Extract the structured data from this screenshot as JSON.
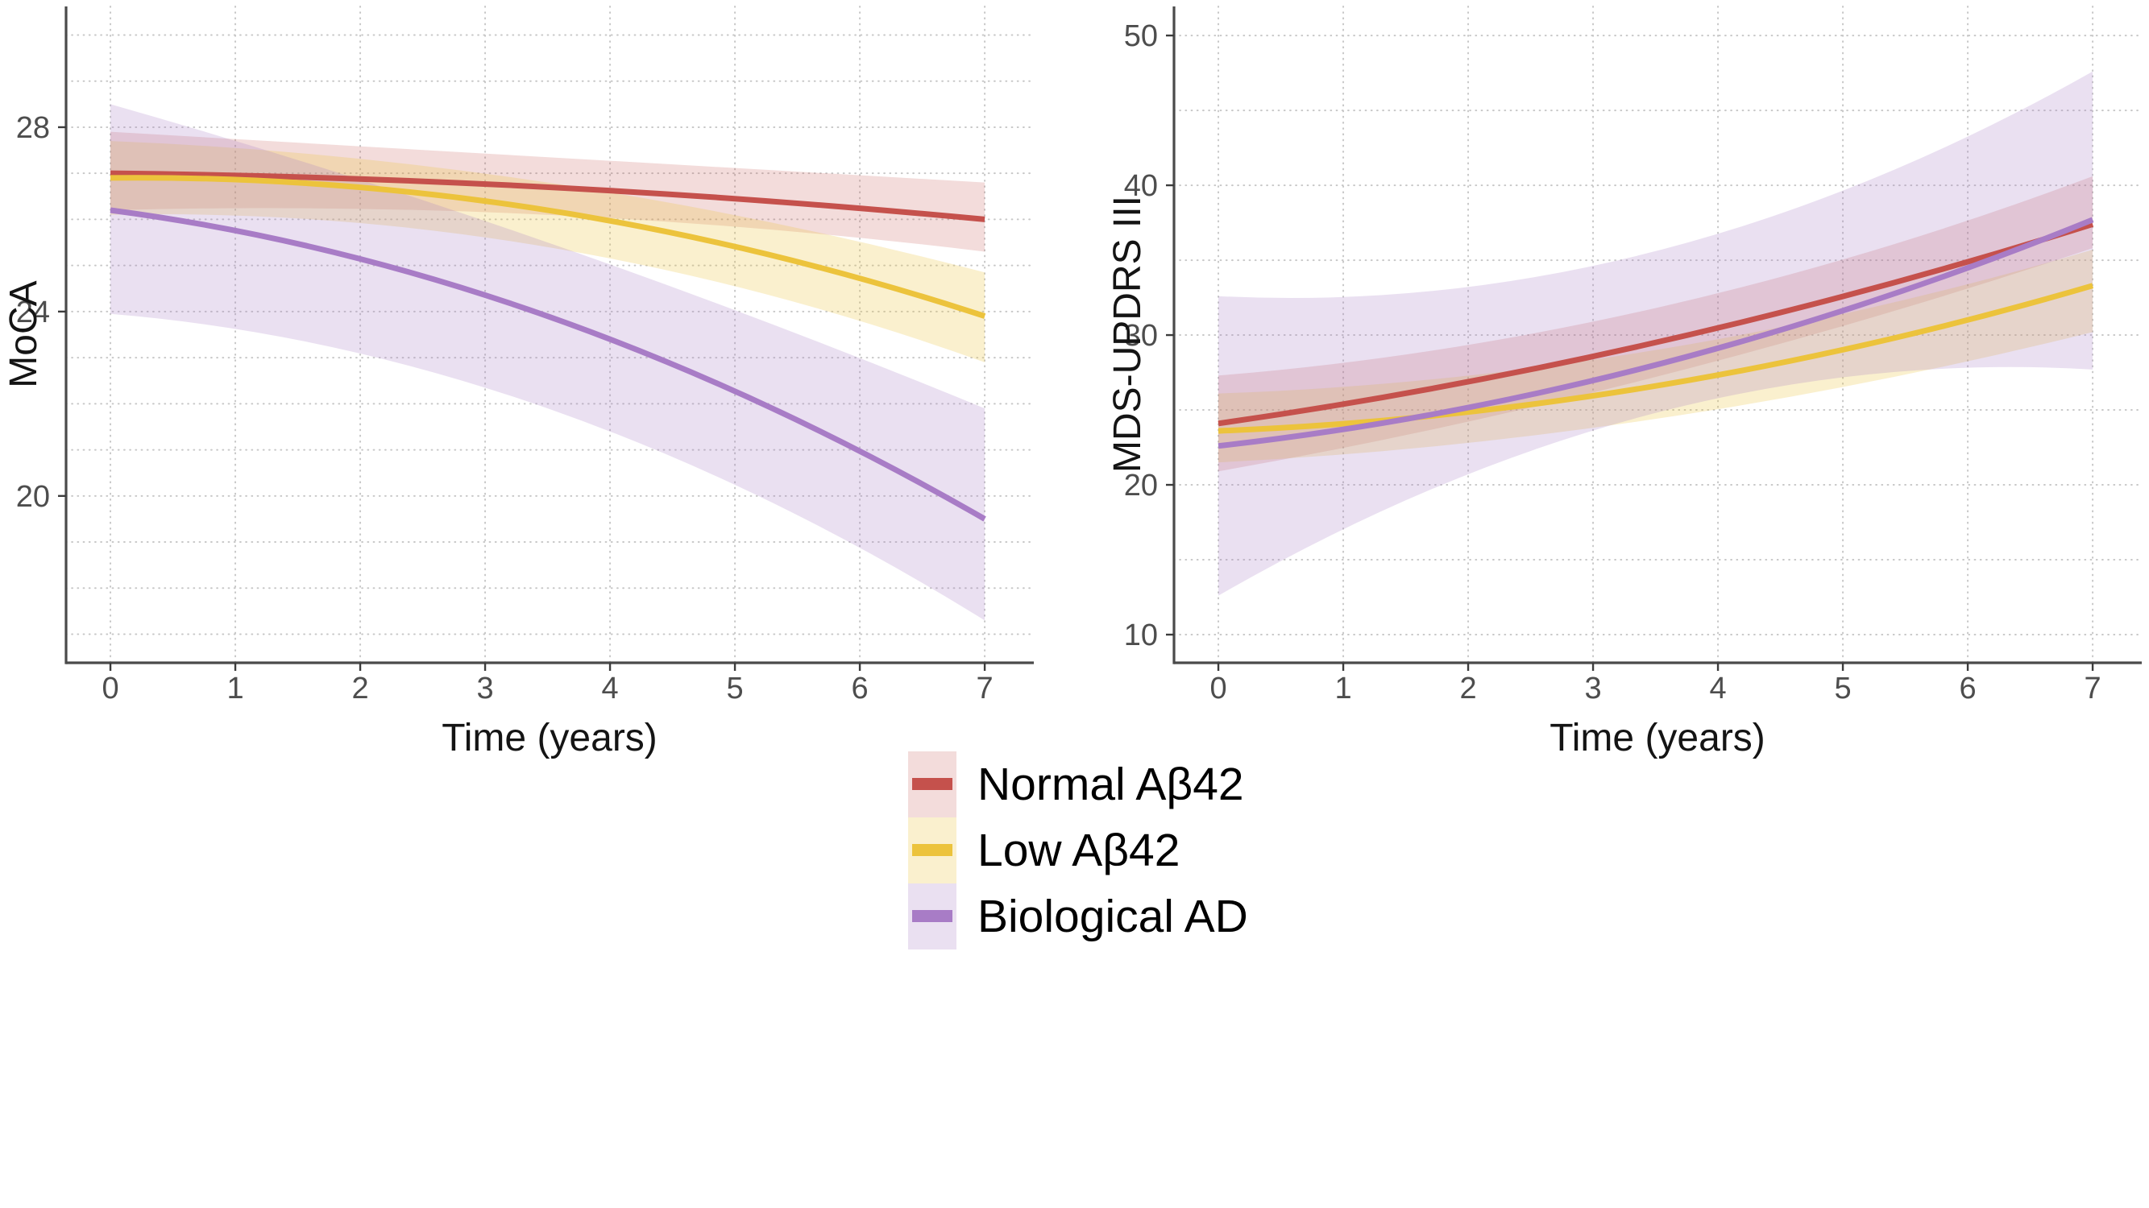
{
  "figure": {
    "background": "#ffffff",
    "legend": {
      "items": [
        {
          "label": "Normal Aβ42",
          "line_color": "#C5514C",
          "fill_color": "rgba(197,81,76,0.20)"
        },
        {
          "label": "Low Aβ42",
          "line_color": "#ECC33C",
          "fill_color": "rgba(236,195,60,0.25)"
        },
        {
          "label": "Biological AD",
          "line_color": "#A87CC6",
          "fill_color": "rgba(168,124,198,0.24)"
        }
      ]
    }
  },
  "chart_data": [
    {
      "type": "line",
      "title": "",
      "xlabel": "Time (years)",
      "ylabel": "MoCA",
      "x": [
        0,
        3.5,
        7
      ],
      "xlim": [
        -0.355,
        7.393
      ],
      "ylim": [
        16.38,
        30.62
      ],
      "x_ticks": [
        0,
        1,
        2,
        3,
        4,
        5,
        6,
        7
      ],
      "x_tick_labels": [
        "0",
        "1",
        "2",
        "3",
        "4",
        "5",
        "6",
        "7"
      ],
      "y_ticks": [
        20,
        24,
        28
      ],
      "y_tick_labels": [
        "20",
        "24",
        "28"
      ],
      "grid_x": [
        0,
        1,
        2,
        3,
        4,
        5,
        6,
        7
      ],
      "grid_y": [
        17,
        18,
        19,
        20,
        21,
        22,
        23,
        24,
        25,
        26,
        27,
        28,
        29,
        30
      ],
      "grid_style": "dotted",
      "legend_position": "bottom",
      "series": [
        {
          "name": "Normal Aβ42",
          "color": "#C5514C",
          "fill": "rgba(197,81,76,0.20)",
          "y": [
            27.0,
            26.7,
            26.0
          ],
          "ci_upper": [
            27.9,
            27.35,
            26.8
          ],
          "ci_lower": [
            26.2,
            26.1,
            25.3
          ]
        },
        {
          "name": "Low Aβ42",
          "color": "#ECC33C",
          "fill": "rgba(236,195,60,0.25)",
          "y": [
            26.9,
            26.2,
            23.9
          ],
          "ci_upper": [
            27.7,
            26.8,
            24.85
          ],
          "ci_lower": [
            26.1,
            25.4,
            22.9
          ]
        },
        {
          "name": "Biological AD",
          "color": "#A87CC6",
          "fill": "rgba(168,124,198,0.24)",
          "y": [
            26.2,
            23.9,
            19.5
          ],
          "ci_upper": [
            28.5,
            25.5,
            21.9
          ],
          "ci_lower": [
            23.95,
            21.9,
            17.3
          ]
        }
      ]
    },
    {
      "type": "line",
      "title": "",
      "xlabel": "Time (years)",
      "ylabel": "MDS-UPDRS III",
      "x": [
        0,
        3.5,
        7
      ],
      "xlim": [
        -0.355,
        7.393
      ],
      "ylim": [
        8.12,
        51.94
      ],
      "x_ticks": [
        0,
        1,
        2,
        3,
        4,
        5,
        6,
        7
      ],
      "x_tick_labels": [
        "0",
        "1",
        "2",
        "3",
        "4",
        "5",
        "6",
        "7"
      ],
      "y_ticks": [
        10,
        20,
        30,
        40,
        50
      ],
      "y_tick_labels": [
        "10",
        "20",
        "30",
        "40",
        "50"
      ],
      "grid_x": [
        0,
        1,
        2,
        3,
        4,
        5,
        6,
        7
      ],
      "grid_y": [
        10,
        15,
        20,
        25,
        30,
        35,
        40,
        45,
        50
      ],
      "grid_style": "dotted",
      "legend_position": "bottom",
      "series": [
        {
          "name": "Normal Aβ42",
          "color": "#C5514C",
          "fill": "rgba(197,81,76,0.20)",
          "y": [
            24.1,
            29.5,
            37.4
          ],
          "ci_upper": [
            27.3,
            31.8,
            40.6
          ],
          "ci_lower": [
            20.9,
            27.2,
            35.8
          ]
        },
        {
          "name": "Low Aβ42",
          "color": "#ECC33C",
          "fill": "rgba(236,195,60,0.25)",
          "y": [
            23.6,
            26.6,
            33.3
          ],
          "ci_upper": [
            26.1,
            29.0,
            35.7
          ],
          "ci_lower": [
            21.5,
            24.4,
            30.2
          ]
        },
        {
          "name": "Biological AD",
          "color": "#A87CC6",
          "fill": "rgba(168,124,198,0.24)",
          "y": [
            22.6,
            28.0,
            37.7
          ],
          "ci_upper": [
            32.6,
            35.6,
            47.6
          ],
          "ci_lower": [
            12.6,
            24.8,
            27.7
          ]
        }
      ]
    }
  ]
}
